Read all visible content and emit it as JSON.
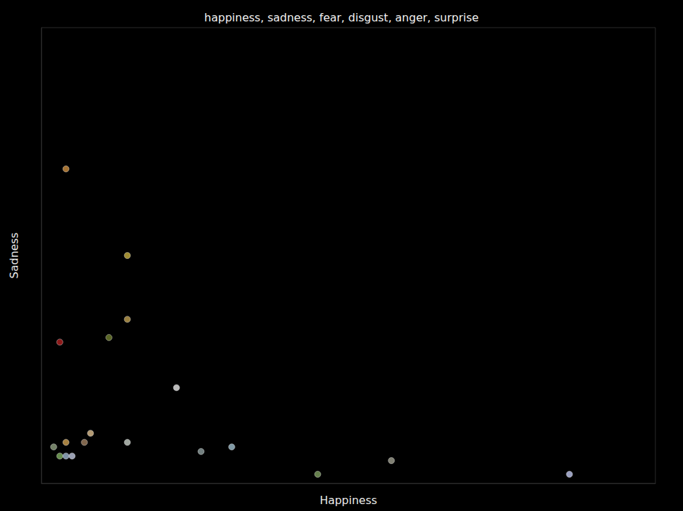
{
  "chart_data": {
    "type": "scatter",
    "title": "happiness, sadness, fear, disgust, anger, surprise",
    "x_label": "Happiness",
    "y_label": "Sadness",
    "x": [
      0.04,
      0.14,
      0.14,
      0.03,
      0.11,
      0.22,
      0.08,
      0.04,
      0.07,
      0.14,
      0.02,
      0.03,
      0.04,
      0.05,
      0.26,
      0.31,
      0.45,
      0.57,
      0.86
    ],
    "values": [
      0.69,
      0.5,
      0.36,
      0.31,
      0.32,
      0.21,
      0.11,
      0.09,
      0.09,
      0.09,
      0.08,
      0.06,
      0.06,
      0.06,
      0.07,
      0.08,
      0.02,
      0.05,
      0.02
    ],
    "colors": [
      "#d09040",
      "#c8b040",
      "#c0a050",
      "#b02020",
      "#708030",
      "#e8e8e8",
      "#e0c090",
      "#d0a050",
      "#a08060",
      "#c8d0c8",
      "#90a080",
      "#80b060",
      "#a0b8d0",
      "#c0c8e0",
      "#90a0a0",
      "#a0c0d0",
      "#80a060",
      "#a0a090",
      "#c0c8f0"
    ],
    "marker": "circle",
    "xlim": [
      0,
      1
    ],
    "ylim": [
      0,
      1
    ],
    "tick_labels": false,
    "grid": false
  }
}
